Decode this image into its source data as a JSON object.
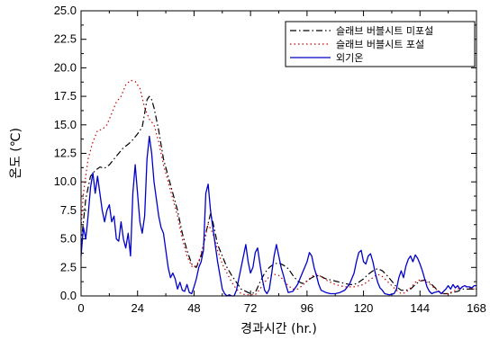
{
  "chart_data": {
    "type": "line",
    "xlabel": "경과시간 (hr.)",
    "ylabel": "온도 (℃)",
    "xlim": [
      0,
      168
    ],
    "ylim": [
      0,
      25
    ],
    "xticks": [
      0,
      24,
      48,
      72,
      96,
      120,
      144,
      168
    ],
    "yticks": [
      0,
      2.5,
      5,
      7.5,
      10,
      12.5,
      15,
      17.5,
      20,
      22.5,
      25
    ],
    "ytick_labels": [
      "0.0",
      "2.5",
      "5.0",
      "7.5",
      "10.0",
      "12.5",
      "15.0",
      "17.5",
      "20.0",
      "22.5",
      "25.0"
    ],
    "grid": false,
    "legend_position": "top-right",
    "series": [
      {
        "name": "슬래브 버블시트 미포설",
        "color": "#000000",
        "style": "dashdot",
        "points": [
          [
            0,
            4.5
          ],
          [
            2,
            8.5
          ],
          [
            4,
            10.5
          ],
          [
            6,
            11.0
          ],
          [
            8,
            11.3
          ],
          [
            10,
            11.2
          ],
          [
            12,
            11.5
          ],
          [
            14,
            12.0
          ],
          [
            16,
            12.5
          ],
          [
            18,
            13.0
          ],
          [
            20,
            13.3
          ],
          [
            22,
            13.7
          ],
          [
            24,
            14.2
          ],
          [
            26,
            14.8
          ],
          [
            28,
            17.2
          ],
          [
            29,
            17.5
          ],
          [
            30,
            17.2
          ],
          [
            31,
            16.5
          ],
          [
            33,
            14.5
          ],
          [
            35,
            12.0
          ],
          [
            37,
            10.5
          ],
          [
            39,
            9.0
          ],
          [
            41,
            7.5
          ],
          [
            43,
            5.5
          ],
          [
            45,
            4.0
          ],
          [
            47,
            2.8
          ],
          [
            48,
            2.6
          ],
          [
            49,
            2.5
          ],
          [
            51,
            3.5
          ],
          [
            53,
            5.5
          ],
          [
            55,
            7.2
          ],
          [
            56,
            6.5
          ],
          [
            58,
            4.5
          ],
          [
            60,
            3.5
          ],
          [
            62,
            2.5
          ],
          [
            64,
            1.8
          ],
          [
            66,
            1.2
          ],
          [
            68,
            0.6
          ],
          [
            70,
            0.4
          ],
          [
            72,
            0.2
          ],
          [
            74,
            0.3
          ],
          [
            76,
            1.2
          ],
          [
            78,
            2.0
          ],
          [
            80,
            2.5
          ],
          [
            82,
            2.8
          ],
          [
            84,
            2.9
          ],
          [
            86,
            2.7
          ],
          [
            88,
            2.4
          ],
          [
            90,
            1.8
          ],
          [
            92,
            1.3
          ],
          [
            94,
            1.1
          ],
          [
            96,
            1.3
          ],
          [
            98,
            1.6
          ],
          [
            100,
            1.8
          ],
          [
            102,
            1.7
          ],
          [
            104,
            1.5
          ],
          [
            106,
            1.4
          ],
          [
            108,
            1.3
          ],
          [
            110,
            1.2
          ],
          [
            112,
            1.1
          ],
          [
            114,
            1.0
          ],
          [
            116,
            1.0
          ],
          [
            118,
            1.2
          ],
          [
            120,
            1.5
          ],
          [
            122,
            1.9
          ],
          [
            124,
            2.2
          ],
          [
            126,
            2.4
          ],
          [
            128,
            2.2
          ],
          [
            130,
            1.8
          ],
          [
            132,
            1.3
          ],
          [
            134,
            0.8
          ],
          [
            136,
            0.5
          ],
          [
            138,
            0.5
          ],
          [
            140,
            0.6
          ],
          [
            142,
            1.0
          ],
          [
            144,
            1.3
          ],
          [
            146,
            1.4
          ],
          [
            148,
            1.2
          ],
          [
            150,
            0.8
          ],
          [
            152,
            0.4
          ],
          [
            154,
            0.2
          ],
          [
            156,
            0.2
          ],
          [
            158,
            0.3
          ],
          [
            160,
            0.4
          ],
          [
            162,
            0.6
          ],
          [
            164,
            0.6
          ],
          [
            166,
            0.6
          ],
          [
            168,
            0.6
          ]
        ]
      },
      {
        "name": "슬래브 버블시트 포설",
        "color": "#cc0000",
        "style": "dotted",
        "points": [
          [
            0,
            6.0
          ],
          [
            1,
            9.0
          ],
          [
            3,
            12.0
          ],
          [
            5,
            13.5
          ],
          [
            7,
            14.5
          ],
          [
            9,
            14.6
          ],
          [
            11,
            15.0
          ],
          [
            13,
            16.0
          ],
          [
            15,
            17.0
          ],
          [
            17,
            17.5
          ],
          [
            19,
            18.5
          ],
          [
            21,
            18.9
          ],
          [
            23,
            18.8
          ],
          [
            25,
            18.2
          ],
          [
            27,
            16.5
          ],
          [
            29,
            15.5
          ],
          [
            31,
            15.0
          ],
          [
            33,
            13.5
          ],
          [
            35,
            11.5
          ],
          [
            37,
            10.0
          ],
          [
            39,
            8.5
          ],
          [
            41,
            7.0
          ],
          [
            43,
            5.0
          ],
          [
            45,
            3.5
          ],
          [
            47,
            2.6
          ],
          [
            48,
            2.5
          ],
          [
            50,
            3.0
          ],
          [
            52,
            4.5
          ],
          [
            54,
            6.3
          ],
          [
            56,
            5.5
          ],
          [
            58,
            4.0
          ],
          [
            60,
            2.8
          ],
          [
            62,
            2.0
          ],
          [
            64,
            1.2
          ],
          [
            66,
            0.6
          ],
          [
            68,
            0.2
          ],
          [
            70,
            0.1
          ],
          [
            72,
            0.1
          ],
          [
            74,
            0.1
          ],
          [
            76,
            0.6
          ],
          [
            78,
            1.2
          ],
          [
            80,
            1.7
          ],
          [
            82,
            1.9
          ],
          [
            84,
            1.8
          ],
          [
            86,
            1.4
          ],
          [
            88,
            0.9
          ],
          [
            90,
            0.6
          ],
          [
            92,
            0.6
          ],
          [
            94,
            0.9
          ],
          [
            96,
            1.3
          ],
          [
            98,
            1.7
          ],
          [
            100,
            1.9
          ],
          [
            102,
            1.7
          ],
          [
            104,
            1.4
          ],
          [
            106,
            1.2
          ],
          [
            108,
            1.0
          ],
          [
            110,
            0.9
          ],
          [
            112,
            0.8
          ],
          [
            114,
            0.8
          ],
          [
            116,
            0.8
          ],
          [
            118,
            0.9
          ],
          [
            120,
            1.0
          ],
          [
            122,
            1.3
          ],
          [
            124,
            1.6
          ],
          [
            126,
            1.9
          ],
          [
            128,
            1.7
          ],
          [
            130,
            1.3
          ],
          [
            132,
            0.9
          ],
          [
            134,
            0.5
          ],
          [
            136,
            0.2
          ],
          [
            138,
            0.3
          ],
          [
            140,
            0.7
          ],
          [
            142,
            1.2
          ],
          [
            144,
            1.4
          ],
          [
            146,
            1.3
          ],
          [
            148,
            1.1
          ],
          [
            150,
            0.7
          ],
          [
            152,
            0.4
          ],
          [
            154,
            0.2
          ],
          [
            156,
            0.2
          ],
          [
            158,
            0.4
          ],
          [
            160,
            0.6
          ],
          [
            162,
            0.8
          ],
          [
            164,
            0.8
          ],
          [
            166,
            0.6
          ],
          [
            168,
            0.6
          ]
        ]
      },
      {
        "name": "외기온",
        "color": "#0000cc",
        "style": "solid",
        "points": [
          [
            0,
            3.5
          ],
          [
            1,
            6.0
          ],
          [
            2,
            5.0
          ],
          [
            3,
            7.0
          ],
          [
            4,
            9.5
          ],
          [
            5,
            10.8
          ],
          [
            6,
            9.0
          ],
          [
            7,
            10.5
          ],
          [
            8,
            9.0
          ],
          [
            9,
            7.5
          ],
          [
            10,
            6.5
          ],
          [
            11,
            7.5
          ],
          [
            12,
            8.0
          ],
          [
            13,
            6.5
          ],
          [
            14,
            7.0
          ],
          [
            15,
            5.0
          ],
          [
            16,
            4.8
          ],
          [
            17,
            6.5
          ],
          [
            18,
            5.0
          ],
          [
            19,
            4.2
          ],
          [
            20,
            5.5
          ],
          [
            21,
            3.5
          ],
          [
            22,
            9.0
          ],
          [
            23,
            11.5
          ],
          [
            24,
            9.0
          ],
          [
            25,
            6.5
          ],
          [
            26,
            5.5
          ],
          [
            27,
            7.0
          ],
          [
            28,
            12.0
          ],
          [
            29,
            14.0
          ],
          [
            30,
            12.5
          ],
          [
            31,
            10.0
          ],
          [
            32,
            8.5
          ],
          [
            33,
            7.0
          ],
          [
            34,
            6.0
          ],
          [
            35,
            5.5
          ],
          [
            36,
            4.0
          ],
          [
            37,
            2.5
          ],
          [
            38,
            1.6
          ],
          [
            39,
            2.0
          ],
          [
            40,
            1.5
          ],
          [
            41,
            0.6
          ],
          [
            42,
            1.2
          ],
          [
            43,
            0.5
          ],
          [
            44,
            0.4
          ],
          [
            45,
            1.0
          ],
          [
            46,
            0.3
          ],
          [
            47,
            0.2
          ],
          [
            48,
            0.8
          ],
          [
            49,
            1.5
          ],
          [
            50,
            2.5
          ],
          [
            51,
            3.0
          ],
          [
            52,
            4.0
          ],
          [
            53,
            9.0
          ],
          [
            54,
            9.8
          ],
          [
            55,
            7.5
          ],
          [
            56,
            6.0
          ],
          [
            57,
            4.5
          ],
          [
            58,
            3.0
          ],
          [
            59,
            1.8
          ],
          [
            60,
            0.6
          ],
          [
            61,
            0.2
          ],
          [
            62,
            0.0
          ],
          [
            63,
            0.1
          ],
          [
            64,
            0.0
          ],
          [
            65,
            0.0
          ],
          [
            66,
            0.5
          ],
          [
            67,
            1.5
          ],
          [
            68,
            2.5
          ],
          [
            69,
            3.5
          ],
          [
            70,
            4.5
          ],
          [
            71,
            3.0
          ],
          [
            72,
            2.0
          ],
          [
            73,
            2.5
          ],
          [
            74,
            3.8
          ],
          [
            75,
            4.2
          ],
          [
            76,
            2.8
          ],
          [
            77,
            1.5
          ],
          [
            78,
            0.5
          ],
          [
            79,
            0.2
          ],
          [
            80,
            0.6
          ],
          [
            81,
            2.0
          ],
          [
            82,
            3.5
          ],
          [
            83,
            4.5
          ],
          [
            84,
            3.5
          ],
          [
            85,
            2.5
          ],
          [
            86,
            1.8
          ],
          [
            87,
            1.0
          ],
          [
            88,
            0.3
          ],
          [
            90,
            0.4
          ],
          [
            92,
            1.0
          ],
          [
            94,
            2.0
          ],
          [
            96,
            3.0
          ],
          [
            97,
            3.8
          ],
          [
            98,
            3.5
          ],
          [
            99,
            2.5
          ],
          [
            100,
            1.8
          ],
          [
            101,
            1.0
          ],
          [
            102,
            0.5
          ],
          [
            104,
            0.3
          ],
          [
            106,
            0.2
          ],
          [
            108,
            0.2
          ],
          [
            110,
            0.3
          ],
          [
            112,
            0.5
          ],
          [
            114,
            1.0
          ],
          [
            116,
            2.0
          ],
          [
            117,
            3.0
          ],
          [
            118,
            3.8
          ],
          [
            119,
            4.0
          ],
          [
            120,
            3.0
          ],
          [
            121,
            2.8
          ],
          [
            122,
            3.5
          ],
          [
            123,
            3.7
          ],
          [
            124,
            3.0
          ],
          [
            125,
            2.0
          ],
          [
            126,
            1.2
          ],
          [
            127,
            0.7
          ],
          [
            128,
            0.5
          ],
          [
            129,
            0.2
          ],
          [
            131,
            0.1
          ],
          [
            133,
            0.2
          ],
          [
            134,
            0.6
          ],
          [
            135,
            1.6
          ],
          [
            136,
            2.2
          ],
          [
            137,
            1.6
          ],
          [
            138,
            2.6
          ],
          [
            139,
            3.2
          ],
          [
            140,
            3.5
          ],
          [
            141,
            3.0
          ],
          [
            142,
            3.6
          ],
          [
            143,
            3.3
          ],
          [
            144,
            2.8
          ],
          [
            145,
            2.2
          ],
          [
            146,
            1.5
          ],
          [
            147,
            0.8
          ],
          [
            148,
            0.4
          ],
          [
            149,
            0.2
          ],
          [
            150,
            0.3
          ],
          [
            152,
            0.4
          ],
          [
            153,
            0.2
          ],
          [
            154,
            0.4
          ],
          [
            155,
            0.6
          ],
          [
            156,
            0.9
          ],
          [
            157,
            0.6
          ],
          [
            158,
            1.0
          ],
          [
            159,
            0.7
          ],
          [
            160,
            0.9
          ],
          [
            161,
            0.6
          ],
          [
            162,
            0.8
          ],
          [
            163,
            0.9
          ],
          [
            164,
            0.8
          ],
          [
            165,
            0.8
          ],
          [
            166,
            0.7
          ],
          [
            167,
            0.9
          ],
          [
            168,
            0.9
          ]
        ]
      }
    ]
  }
}
